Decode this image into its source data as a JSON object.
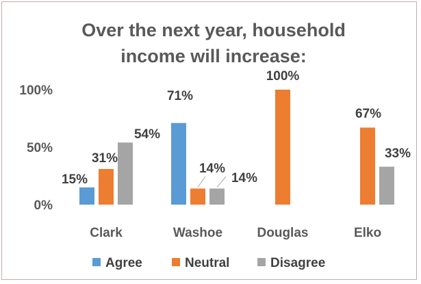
{
  "chart_data": {
    "type": "bar",
    "title_lines": [
      "Over the next year, household",
      "income will increase:"
    ],
    "categories": [
      "Clark",
      "Washoe",
      "Douglas",
      "Elko"
    ],
    "series": [
      {
        "name": "Agree",
        "color": "#5b9bd5",
        "values": [
          15,
          71,
          null,
          null
        ],
        "labels": [
          "15%",
          "71%",
          "",
          ""
        ]
      },
      {
        "name": "Neutral",
        "color": "#ed7d31",
        "values": [
          31,
          14,
          100,
          67
        ],
        "labels": [
          "31%",
          "14%",
          "100%",
          "67%"
        ]
      },
      {
        "name": "Disagree",
        "color": "#a5a5a5",
        "values": [
          54,
          14,
          null,
          33
        ],
        "labels": [
          "54%",
          "14%",
          "",
          "33%"
        ]
      }
    ],
    "y_ticks": [
      {
        "value": 0,
        "label": "0%"
      },
      {
        "value": 50,
        "label": "50%"
      },
      {
        "value": 100,
        "label": "100%"
      }
    ],
    "ylim": [
      0,
      100
    ],
    "grid": false,
    "legend_position": "bottom",
    "leader_lines": "washoe neutral and disagree labels"
  }
}
